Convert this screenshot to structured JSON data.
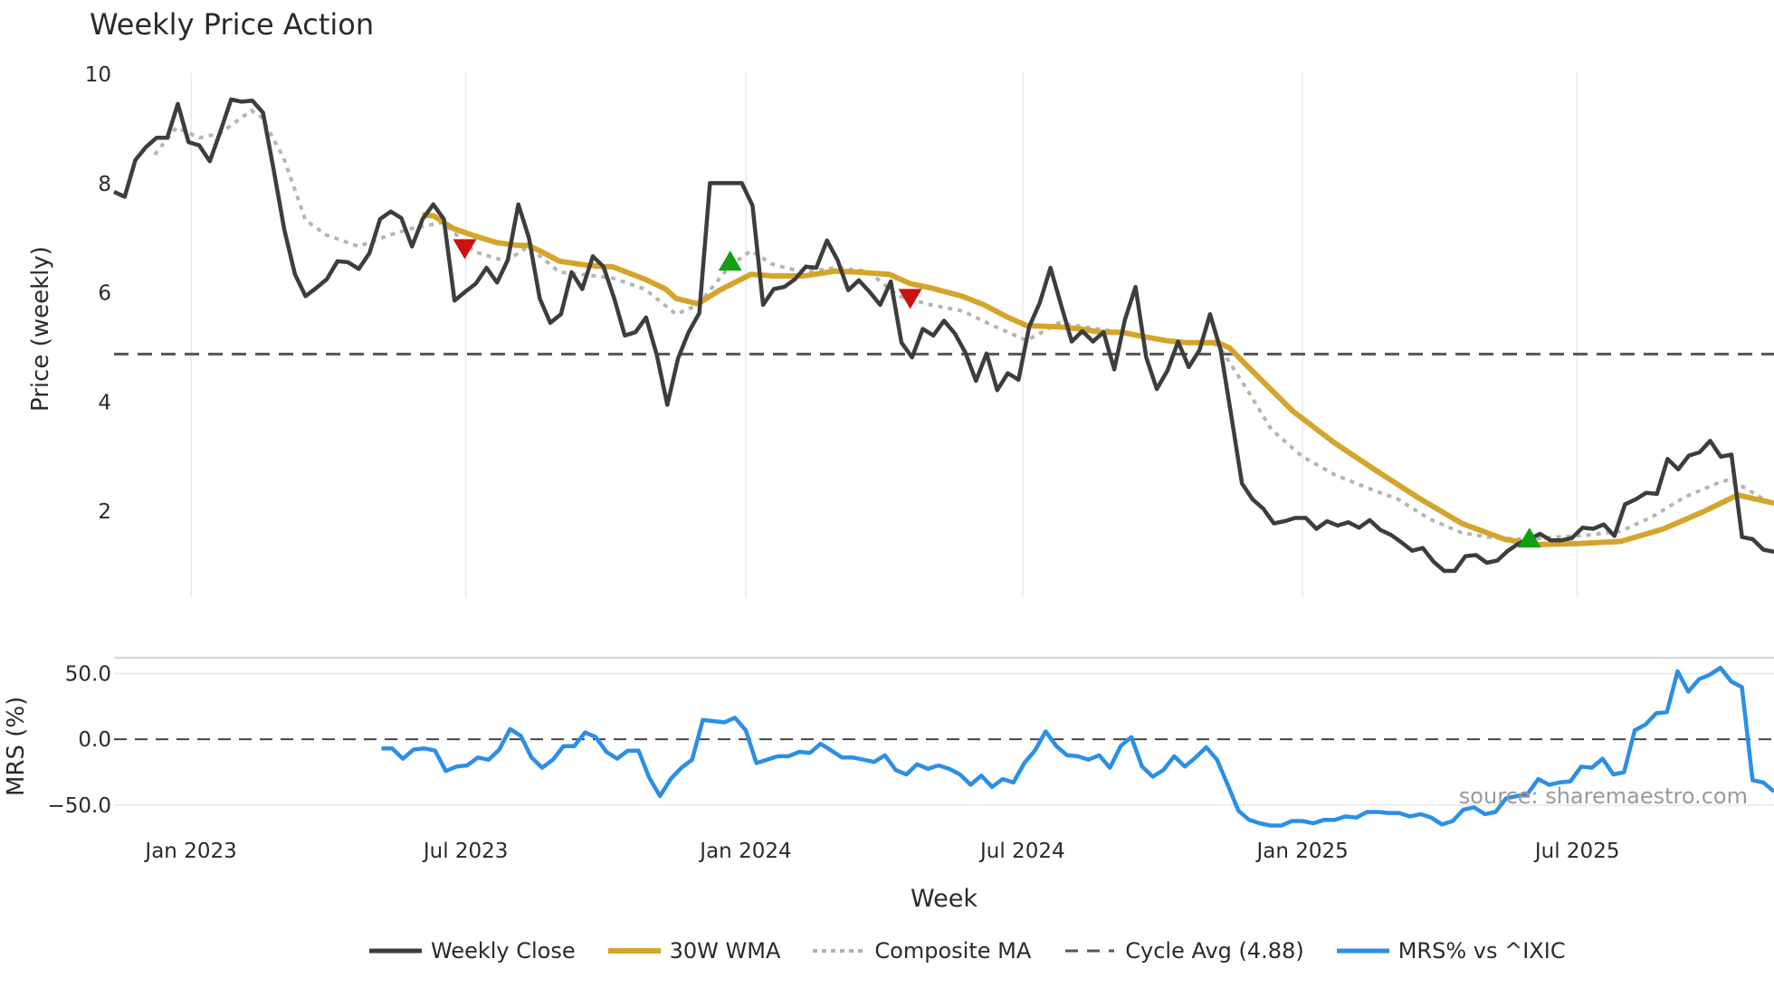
{
  "chart_data": [
    {
      "type": "line",
      "title": "Weekly Price Action",
      "xlabel": "Week",
      "ylabel": "Price (weekly)",
      "ylim": [
        0.43,
        10.12
      ],
      "yticks": [
        2,
        4,
        6,
        8,
        10
      ],
      "xlim": [
        0,
        159.5
      ],
      "xticks": [
        {
          "pos": 7.4,
          "label": "Jan 2023"
        },
        {
          "pos": 33.8,
          "label": "Jul 2023"
        },
        {
          "pos": 60.7,
          "label": "Jan 2024"
        },
        {
          "pos": 87.3,
          "label": "Jul 2024"
        },
        {
          "pos": 114.2,
          "label": "Jan 2025"
        },
        {
          "pos": 140.6,
          "label": "Jul 2025"
        }
      ],
      "grid": "vertical",
      "series": [
        {
          "name": "Weekly Close",
          "color": "#3d3d3d",
          "style": "solid",
          "x_range": [
            0,
            159.5
          ],
          "values": [
            7.85,
            7.76,
            8.43,
            8.67,
            8.84,
            8.84,
            9.46,
            8.76,
            8.7,
            8.41,
            8.96,
            9.54,
            9.5,
            9.52,
            9.3,
            8.26,
            7.16,
            6.34,
            5.94,
            6.09,
            6.25,
            6.58,
            6.56,
            6.44,
            6.73,
            7.35,
            7.49,
            7.37,
            6.85,
            7.35,
            7.62,
            7.35,
            5.86,
            6.02,
            6.17,
            6.46,
            6.19,
            6.6,
            7.62,
            7.0,
            5.9,
            5.45,
            5.61,
            6.38,
            6.07,
            6.67,
            6.48,
            5.9,
            5.22,
            5.28,
            5.55,
            4.87,
            3.95,
            4.8,
            5.28,
            5.63,
            8.01,
            8.01,
            8.01,
            8.01,
            7.6,
            5.78,
            6.07,
            6.11,
            6.25,
            6.48,
            6.46,
            6.96,
            6.6,
            6.05,
            6.23,
            6.02,
            5.78,
            6.21,
            5.09,
            4.82,
            5.34,
            5.22,
            5.49,
            5.26,
            4.91,
            4.39,
            4.89,
            4.22,
            4.53,
            4.41,
            5.38,
            5.82,
            6.46,
            5.78,
            5.11,
            5.3,
            5.11,
            5.28,
            4.6,
            5.51,
            6.11,
            4.82,
            4.24,
            4.58,
            5.11,
            4.64,
            4.95,
            5.61,
            4.95,
            3.75,
            2.51,
            2.22,
            2.05,
            1.78,
            1.82,
            1.88,
            1.88,
            1.68,
            1.82,
            1.74,
            1.8,
            1.7,
            1.84,
            1.66,
            1.57,
            1.43,
            1.28,
            1.33,
            1.08,
            0.91,
            0.91,
            1.18,
            1.2,
            1.06,
            1.1,
            1.28,
            1.41,
            1.49,
            1.59,
            1.47,
            1.47,
            1.51,
            1.7,
            1.68,
            1.76,
            1.55,
            2.13,
            2.22,
            2.34,
            2.32,
            2.96,
            2.77,
            3.02,
            3.08,
            3.29,
            3.0,
            3.04,
            1.53,
            1.49,
            1.3,
            1.26
          ]
        },
        {
          "name": "30W WMA",
          "color": "#d4a52a",
          "style": "solid",
          "points": [
            [
              29.6,
              7.43
            ],
            [
              30.7,
              7.41
            ],
            [
              32.6,
              7.18
            ],
            [
              34.7,
              7.04
            ],
            [
              36.8,
              6.92
            ],
            [
              38.8,
              6.87
            ],
            [
              39.8,
              6.87
            ],
            [
              40.9,
              6.77
            ],
            [
              42.8,
              6.58
            ],
            [
              44.9,
              6.52
            ],
            [
              47.0,
              6.48
            ],
            [
              47.9,
              6.48
            ],
            [
              51.0,
              6.25
            ],
            [
              53.0,
              6.07
            ],
            [
              54.0,
              5.9
            ],
            [
              56.1,
              5.8
            ],
            [
              58.2,
              6.05
            ],
            [
              61.2,
              6.34
            ],
            [
              63.3,
              6.31
            ],
            [
              66.3,
              6.31
            ],
            [
              69.3,
              6.4
            ],
            [
              71.4,
              6.38
            ],
            [
              74.5,
              6.34
            ],
            [
              76.5,
              6.17
            ],
            [
              78.5,
              6.09
            ],
            [
              81.5,
              5.94
            ],
            [
              83.6,
              5.78
            ],
            [
              85.7,
              5.57
            ],
            [
              87.7,
              5.4
            ],
            [
              90.8,
              5.38
            ],
            [
              92.8,
              5.34
            ],
            [
              94.8,
              5.28
            ],
            [
              96.8,
              5.28
            ],
            [
              98.9,
              5.2
            ],
            [
              101.0,
              5.13
            ],
            [
              103.0,
              5.09
            ],
            [
              106.1,
              5.09
            ],
            [
              107.2,
              4.99
            ],
            [
              109.1,
              4.62
            ],
            [
              113.3,
              3.83
            ],
            [
              117.3,
              3.25
            ],
            [
              121.4,
              2.73
            ],
            [
              125.4,
              2.24
            ],
            [
              129.5,
              1.78
            ],
            [
              133.6,
              1.49
            ],
            [
              136.6,
              1.39
            ],
            [
              140.8,
              1.41
            ],
            [
              144.8,
              1.45
            ],
            [
              148.9,
              1.68
            ],
            [
              152.9,
              2.01
            ],
            [
              156.0,
              2.3
            ],
            [
              159.5,
              2.15
            ]
          ]
        },
        {
          "name": "Composite MA",
          "color": "#b0b0b0",
          "style": "dotted",
          "points": [
            [
              3.9,
              8.53
            ],
            [
              6.0,
              9.03
            ],
            [
              8.2,
              8.84
            ],
            [
              10.2,
              8.92
            ],
            [
              13.2,
              9.34
            ],
            [
              14.2,
              9.21
            ],
            [
              16.3,
              8.47
            ],
            [
              18.4,
              7.33
            ],
            [
              20.4,
              7.06
            ],
            [
              23.5,
              6.85
            ],
            [
              26.5,
              7.06
            ],
            [
              28.6,
              7.18
            ],
            [
              31.6,
              7.29
            ],
            [
              34.7,
              6.75
            ],
            [
              37.7,
              6.58
            ],
            [
              39.8,
              6.85
            ],
            [
              42.8,
              6.38
            ],
            [
              44.9,
              6.34
            ],
            [
              47.9,
              6.27
            ],
            [
              51.0,
              6.07
            ],
            [
              54.0,
              5.61
            ],
            [
              56.1,
              5.78
            ],
            [
              59.1,
              6.48
            ],
            [
              61.2,
              6.77
            ],
            [
              63.3,
              6.52
            ],
            [
              66.3,
              6.38
            ],
            [
              69.3,
              6.46
            ],
            [
              72.4,
              6.4
            ],
            [
              75.4,
              5.94
            ],
            [
              78.5,
              5.78
            ],
            [
              81.5,
              5.67
            ],
            [
              84.7,
              5.38
            ],
            [
              87.7,
              5.13
            ],
            [
              90.8,
              5.45
            ],
            [
              93.8,
              5.36
            ],
            [
              96.8,
              5.28
            ],
            [
              100.0,
              5.16
            ],
            [
              103.0,
              5.09
            ],
            [
              106.1,
              5.05
            ],
            [
              109.1,
              4.16
            ],
            [
              111.2,
              3.5
            ],
            [
              114.2,
              3.0
            ],
            [
              117.3,
              2.67
            ],
            [
              120.3,
              2.44
            ],
            [
              123.4,
              2.22
            ],
            [
              126.4,
              1.86
            ],
            [
              129.5,
              1.61
            ],
            [
              132.6,
              1.51
            ],
            [
              135.7,
              1.49
            ],
            [
              138.7,
              1.53
            ],
            [
              141.8,
              1.57
            ],
            [
              144.8,
              1.64
            ],
            [
              147.8,
              1.9
            ],
            [
              150.9,
              2.26
            ],
            [
              154.0,
              2.51
            ],
            [
              155.3,
              2.59
            ],
            [
              159.5,
              2.11
            ]
          ]
        },
        {
          "name": "Cycle Avg (4.88)",
          "color": "#555555",
          "style": "dashed",
          "value": 4.88
        }
      ],
      "markers": [
        {
          "type": "sell",
          "shape": "triangle-down",
          "color": "#cc1111",
          "x": 33.7,
          "y": 6.81
        },
        {
          "type": "buy",
          "shape": "triangle-up",
          "color": "#12a012",
          "x": 59.2,
          "y": 6.58
        },
        {
          "type": "sell",
          "shape": "triangle-down",
          "color": "#cc1111",
          "x": 76.5,
          "y": 5.9
        },
        {
          "type": "buy",
          "shape": "triangle-up",
          "color": "#12a012",
          "x": 136.0,
          "y": 1.51
        }
      ]
    },
    {
      "type": "line",
      "ylabel": "MRS (%)",
      "ylim": [
        -70,
        62
      ],
      "yticks": [
        {
          "v": 50,
          "label": "50.0"
        },
        {
          "v": 0,
          "label": "0.0"
        },
        {
          "v": -50,
          "label": "−50.0"
        }
      ],
      "xlim": [
        0,
        159.5
      ],
      "series": [
        {
          "name": "MRS% vs ^IXIC",
          "color": "#2b8fe6",
          "style": "solid",
          "x_range": [
            25.7,
            159.5
          ],
          "values": [
            -6.9,
            -6.9,
            -14.7,
            -7.8,
            -6.9,
            -8.6,
            -24.1,
            -20.7,
            -19.8,
            -13.8,
            -15.5,
            -7.8,
            7.8,
            2.6,
            -13.8,
            -21.6,
            -15.5,
            -5.2,
            -5.2,
            5.2,
            1.7,
            -9.5,
            -14.7,
            -8.6,
            -8.6,
            -29.3,
            -43.1,
            -30.2,
            -21.6,
            -15.5,
            14.7,
            13.8,
            12.9,
            16.4,
            6.9,
            -18.1,
            -15.5,
            -12.9,
            -12.9,
            -9.5,
            -10.3,
            -3.4,
            -8.6,
            -13.8,
            -13.8,
            -15.5,
            -17.2,
            -12.1,
            -23.3,
            -26.7,
            -19.0,
            -22.4,
            -19.8,
            -22.4,
            -26.7,
            -34.5,
            -27.6,
            -36.2,
            -30.2,
            -32.8,
            -18.1,
            -8.6,
            6.0,
            -5.2,
            -12.1,
            -12.9,
            -15.5,
            -12.1,
            -21.6,
            -5.2,
            1.7,
            -20.7,
            -28.4,
            -23.3,
            -12.9,
            -20.7,
            -13.8,
            -6.0,
            -15.5,
            -34.5,
            -54.3,
            -61.2,
            -63.8,
            -65.5,
            -65.5,
            -62.1,
            -62.1,
            -63.8,
            -61.2,
            -61.2,
            -58.6,
            -59.5,
            -55.2,
            -55.2,
            -56.0,
            -56.0,
            -58.6,
            -56.9,
            -59.5,
            -64.7,
            -62.1,
            -53.4,
            -51.7,
            -56.9,
            -55.2,
            -44.8,
            -43.1,
            -41.4,
            -30.2,
            -34.5,
            -32.8,
            -31.9,
            -20.7,
            -21.6,
            -14.7,
            -26.7,
            -25.0,
            6.9,
            11.2,
            19.8,
            20.7,
            51.7,
            36.2,
            45.7,
            49.1,
            54.3,
            44.0,
            39.7,
            -31.0,
            -32.8,
            -39.7
          ]
        },
        {
          "name": "zero",
          "style": "dashed",
          "value": 0
        }
      ]
    }
  ],
  "legend": {
    "placement": "bottom-center",
    "items": [
      {
        "label": "Weekly Close",
        "color": "#3d3d3d",
        "style": "solid"
      },
      {
        "label": "30W WMA",
        "color": "#d4a52a",
        "style": "solid"
      },
      {
        "label": "Composite MA",
        "color": "#b0b0b0",
        "style": "dotted"
      },
      {
        "label": "Cycle Avg (4.88)",
        "color": "#555555",
        "style": "dashed"
      },
      {
        "label": "MRS% vs ^IXIC",
        "color": "#2b8fe6",
        "style": "solid"
      }
    ]
  },
  "source": "source: sharemaestro.com"
}
